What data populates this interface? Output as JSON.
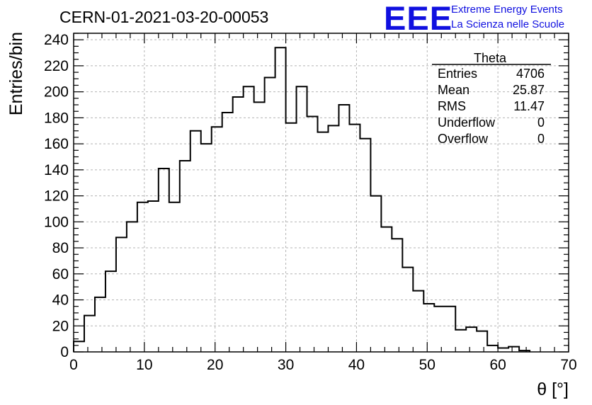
{
  "chart_data": {
    "type": "histogram",
    "title": "CERN-01-2021-03-20-00053",
    "xlabel": "θ [°]",
    "ylabel": "Entries/bin",
    "xlim": [
      0,
      70
    ],
    "ylim": [
      0,
      245
    ],
    "grid": true,
    "x_ticks": [
      0,
      10,
      20,
      30,
      40,
      50,
      60,
      70
    ],
    "y_ticks": [
      0,
      20,
      40,
      60,
      80,
      100,
      120,
      140,
      160,
      180,
      200,
      220,
      240
    ],
    "bin_width": 1.5,
    "bin_start": 0,
    "values": [
      8,
      28,
      42,
      62,
      88,
      100,
      115,
      116,
      141,
      115,
      147,
      170,
      160,
      173,
      184,
      196,
      204,
      192,
      211,
      234,
      176,
      204,
      181,
      169,
      174,
      190,
      175,
      164,
      120,
      96,
      87,
      65,
      47,
      37,
      35,
      35,
      17,
      19,
      16,
      5,
      3,
      4,
      1
    ],
    "stats_box": {
      "title": "Theta",
      "rows": [
        {
          "label": "Entries",
          "value": "4706"
        },
        {
          "label": "Mean",
          "value": "25.87"
        },
        {
          "label": "RMS",
          "value": "11.47"
        },
        {
          "label": "Underflow",
          "value": "0"
        },
        {
          "label": "Overflow",
          "value": "0"
        }
      ]
    }
  },
  "logo": {
    "mark": "EEE",
    "line1": "Extreme Energy Events",
    "line2": "La Scienza nelle Scuole",
    "color": "#1010e0"
  }
}
